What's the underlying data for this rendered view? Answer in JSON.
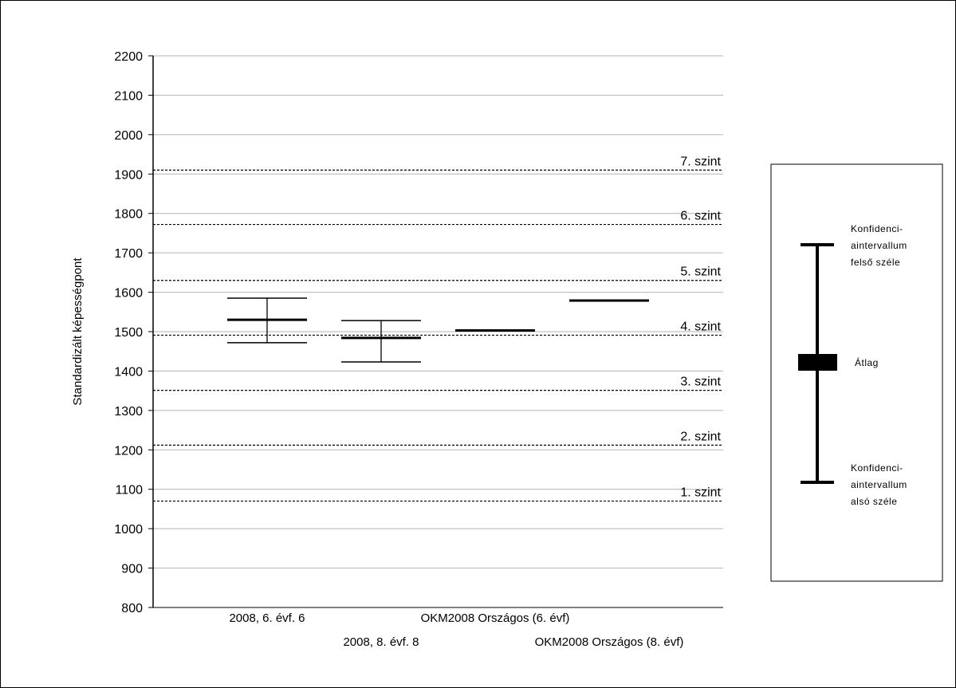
{
  "chart_data": {
    "type": "errorbar",
    "ylabel": "Standardizált képességpont",
    "ylim": [
      800,
      2200
    ],
    "yticks": [
      800,
      900,
      1000,
      1100,
      1200,
      1300,
      1400,
      1500,
      1600,
      1700,
      1800,
      1900,
      2000,
      2100,
      2200
    ],
    "grid": true,
    "categories": [
      "2008, 6. évf. 6",
      "2008, 8. évf. 8",
      "OKM2008 Országos (6. évf)",
      "OKM2008 Országos (8. évf)"
    ],
    "series": [
      {
        "category": "2008, 6. évf. 6",
        "mean": 1530,
        "lower": 1472,
        "upper": 1585
      },
      {
        "category": "2008, 8. évf. 8",
        "mean": 1484,
        "lower": 1423,
        "upper": 1528
      },
      {
        "category": "OKM2008 Országos (6. évf)",
        "mean": 1503
      },
      {
        "category": "OKM2008 Országos (8. évf)",
        "mean": 1579
      }
    ],
    "levels": [
      {
        "label": "1. szint",
        "value": 1070
      },
      {
        "label": "2. szint",
        "value": 1212
      },
      {
        "label": "3. szint",
        "value": 1351
      },
      {
        "label": "4. szint",
        "value": 1491
      },
      {
        "label": "5. szint",
        "value": 1630
      },
      {
        "label": "6. szint",
        "value": 1772
      },
      {
        "label": "7. szint",
        "value": 1910
      }
    ],
    "legend": {
      "placement": "right",
      "upper_label": [
        "Konfidenci-",
        "aintervallum",
        "felső széle"
      ],
      "mean_label": "Átlag",
      "lower_label": [
        "Konfidenci-",
        "aintervallum",
        "alsó széle"
      ]
    }
  }
}
